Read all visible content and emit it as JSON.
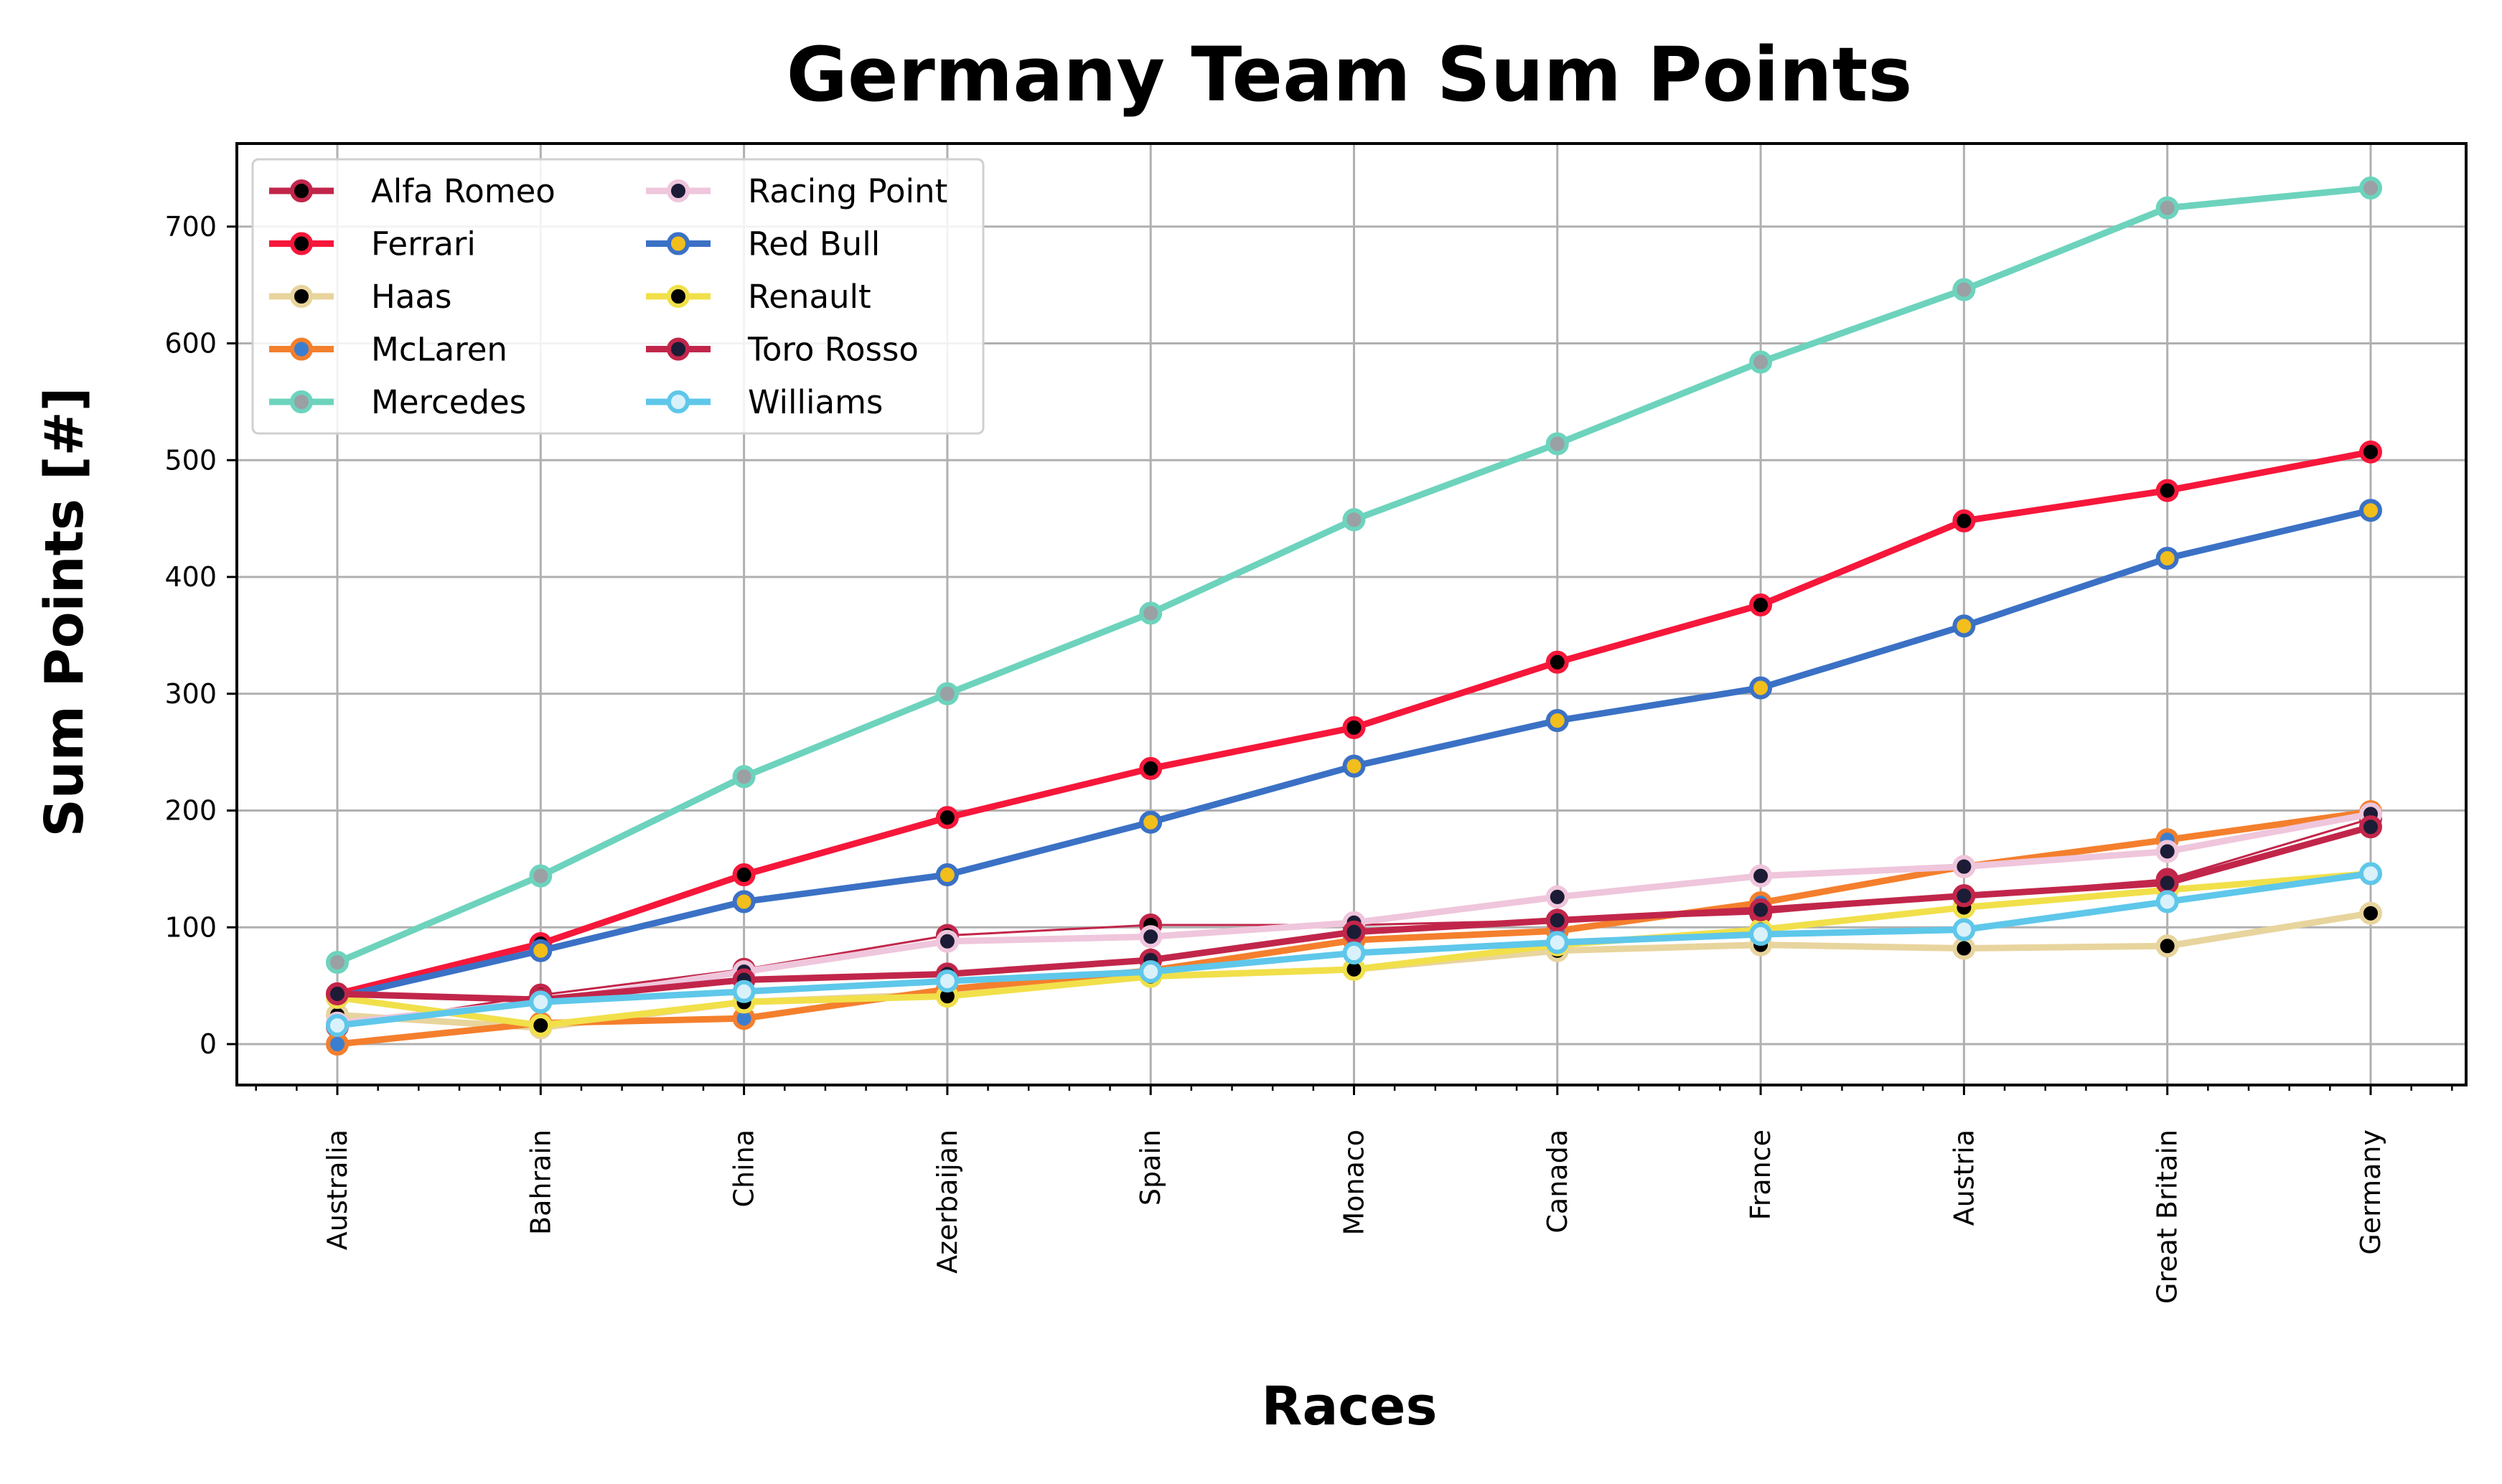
{
  "chart_data": {
    "type": "line",
    "title": "Germany Team Sum Points",
    "xlabel": "Races",
    "ylabel": "Sum Points [#]",
    "categories": [
      "Australia",
      "Bahrain",
      "China",
      "Azerbaijan",
      "Spain",
      "Monaco",
      "Canada",
      "France",
      "Austria",
      "Great Britain",
      "Germany"
    ],
    "ylim": [
      -35,
      770
    ],
    "yticks": [
      0,
      100,
      200,
      300,
      400,
      500,
      600,
      700
    ],
    "grid": true,
    "legend_position": "top-left",
    "series": [
      {
        "name": "Alfa Romeo",
        "color": "#c1264a",
        "marker_face": "#000000",
        "values": [
          15,
          42,
          64,
          93,
          102,
          102,
          106,
          112,
          127,
          141,
          193
        ]
      },
      {
        "name": "Ferrari",
        "color": "#f6173a",
        "marker_face": "#000000",
        "values": [
          43,
          86,
          145,
          194,
          236,
          271,
          327,
          376,
          448,
          474,
          507
        ]
      },
      {
        "name": "Haas",
        "color": "#e8d49d",
        "marker_face": "#000000",
        "values": [
          25,
          14,
          36,
          43,
          58,
          64,
          80,
          85,
          82,
          84,
          112
        ]
      },
      {
        "name": "McLaren",
        "color": "#f47f2d",
        "marker_face": "#3b7ed0",
        "values": [
          0,
          18,
          22,
          47,
          63,
          89,
          97,
          121,
          152,
          175,
          199
        ]
      },
      {
        "name": "Mercedes",
        "color": "#6dd3bd",
        "marker_face": "#9aa0a4",
        "values": [
          70,
          144,
          229,
          300,
          369,
          449,
          514,
          584,
          646,
          716,
          733
        ]
      },
      {
        "name": "Racing Point",
        "color": "#efc6dc",
        "marker_face": "#1c1c36",
        "values": [
          18,
          36,
          62,
          88,
          92,
          104,
          126,
          144,
          152,
          165,
          197
        ]
      },
      {
        "name": "Red Bull",
        "color": "#3b71c5",
        "marker_face": "#f2be1c",
        "values": [
          40,
          80,
          122,
          145,
          190,
          238,
          277,
          305,
          358,
          416,
          457
        ]
      },
      {
        "name": "Renault",
        "color": "#f1e04a",
        "marker_face": "#000000",
        "values": [
          40,
          16,
          36,
          41,
          58,
          64,
          85,
          98,
          117,
          132,
          146
        ]
      },
      {
        "name": "Toro Rosso",
        "color": "#c1264a",
        "marker_face": "#1c1c36",
        "values": [
          43,
          38,
          55,
          60,
          72,
          96,
          106,
          115,
          127,
          138,
          186
        ]
      },
      {
        "name": "Williams",
        "color": "#5ec7ea",
        "marker_face": "#d9f1fb",
        "values": [
          16,
          36,
          45,
          54,
          62,
          78,
          87,
          94,
          98,
          122,
          146
        ]
      }
    ]
  }
}
